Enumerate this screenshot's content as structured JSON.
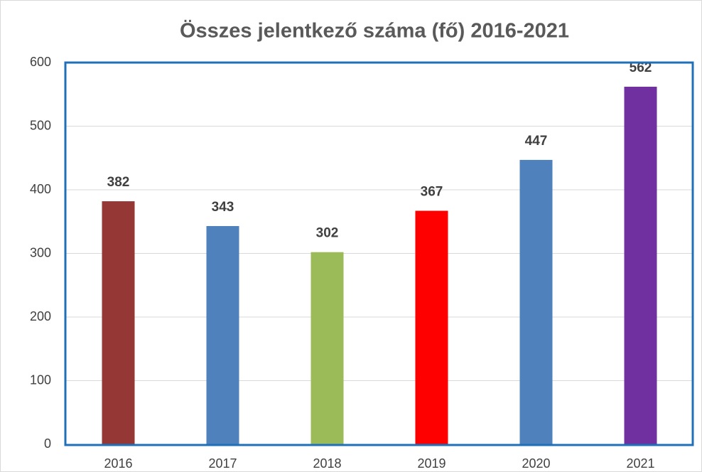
{
  "chart_data": {
    "type": "bar",
    "title": "Összes jelentkező száma (fő)  2016-2021",
    "categories": [
      "2016",
      "2017",
      "2018",
      "2019",
      "2020",
      "2021"
    ],
    "values": [
      382,
      343,
      302,
      367,
      447,
      562
    ],
    "colors": [
      "#953735",
      "#4f81bd",
      "#9bbb59",
      "#ff0000",
      "#4f81bd",
      "#7030a0"
    ],
    "ylim": [
      0,
      600
    ],
    "yticks": [
      0,
      100,
      200,
      300,
      400,
      500,
      600
    ],
    "grid": true,
    "data_labels": true
  }
}
